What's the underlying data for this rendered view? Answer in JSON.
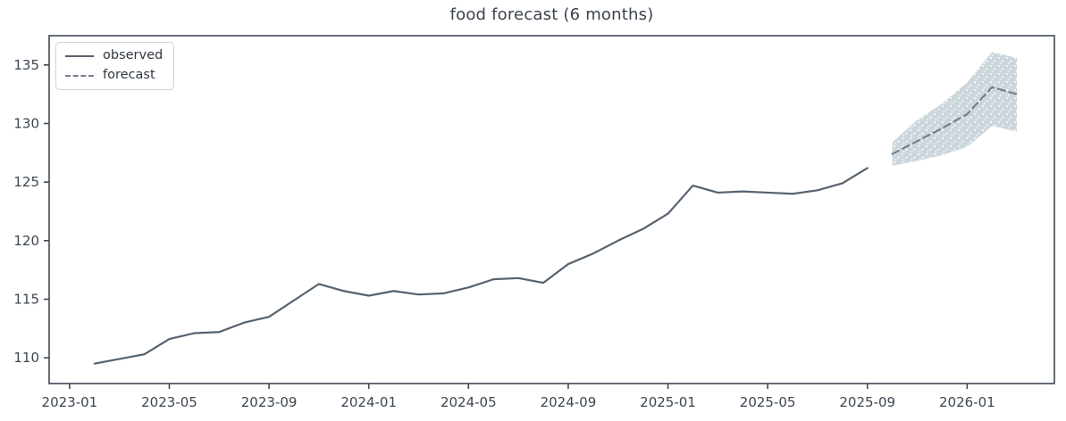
{
  "figure": {
    "title": "food forecast (6 months)"
  },
  "legend": {
    "items": [
      {
        "label": "observed",
        "line_style": "solid"
      },
      {
        "label": "forecast",
        "line_style": "dashed"
      }
    ]
  },
  "chart_data": {
    "type": "line",
    "title": "food forecast (6 months)",
    "xlabel": "",
    "ylabel": "",
    "grid": false,
    "legend_position": "upper-left",
    "x_origin_month": "2023-01",
    "xlim_month_offset": [
      -0.82,
      39.5
    ],
    "ylim": [
      107.8,
      137.5
    ],
    "x_tick_labels": [
      "2023-01",
      "2023-05",
      "2023-09",
      "2024-01",
      "2024-05",
      "2024-09",
      "2025-01",
      "2025-05",
      "2025-09",
      "2026-01"
    ],
    "y_ticks": [
      110,
      115,
      120,
      125,
      130,
      135
    ],
    "axis_color": "#3f4954",
    "tick_label_color": "#3d4651",
    "background": "#ffffff",
    "series": [
      {
        "name": "observed",
        "line_style": "solid",
        "color": "#566270",
        "x": [
          "2023-02",
          "2023-03",
          "2023-04",
          "2023-05",
          "2023-06",
          "2023-07",
          "2023-08",
          "2023-09",
          "2023-10",
          "2023-11",
          "2023-12",
          "2024-01",
          "2024-02",
          "2024-03",
          "2024-04",
          "2024-05",
          "2024-06",
          "2024-07",
          "2024-08",
          "2024-09",
          "2024-10",
          "2024-11",
          "2024-12",
          "2025-01",
          "2025-02",
          "2025-03",
          "2025-04",
          "2025-05",
          "2025-06",
          "2025-07",
          "2025-08",
          "2025-09"
        ],
        "values": [
          109.5,
          109.9,
          110.3,
          111.6,
          112.1,
          112.2,
          113.0,
          113.5,
          114.9,
          116.3,
          115.7,
          115.3,
          115.7,
          115.4,
          115.5,
          116.0,
          116.7,
          116.8,
          116.4,
          118.0,
          118.9,
          120.0,
          121.0,
          122.3,
          124.7,
          124.1,
          124.2,
          124.1,
          124.0,
          124.3,
          124.9,
          126.2
        ]
      },
      {
        "name": "forecast",
        "line_style": "dashed",
        "color": "#73808c",
        "ci_color": "#ccd6dd",
        "x": [
          "2025-10",
          "2025-11",
          "2025-12",
          "2026-01",
          "2026-02",
          "2026-03"
        ],
        "values": [
          127.4,
          128.5,
          129.6,
          130.8,
          133.1,
          132.5
        ],
        "ci_lower": [
          126.4,
          126.8,
          127.3,
          128.0,
          129.8,
          129.3
        ],
        "ci_upper": [
          128.4,
          130.3,
          131.7,
          133.5,
          136.1,
          135.6
        ]
      }
    ]
  }
}
